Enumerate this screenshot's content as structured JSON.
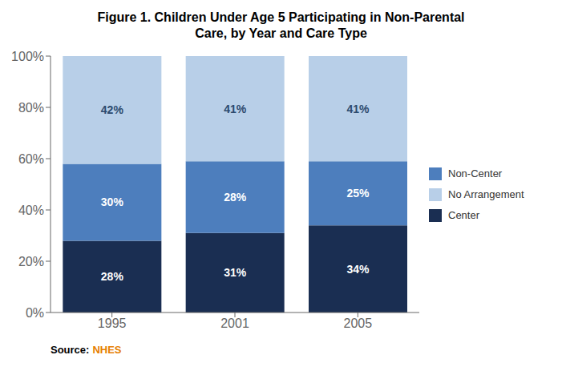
{
  "chart_data": {
    "type": "bar",
    "title": "Figure 1. Children Under Age 5 Participating in Non-Parental\nCare, by Year and Care Type",
    "categories": [
      "1995",
      "2001",
      "2005"
    ],
    "series": [
      {
        "name": "Center",
        "color": "#1a2e52",
        "values": [
          28,
          31,
          34
        ],
        "value_labels": [
          "28%",
          "31%",
          "34%"
        ]
      },
      {
        "name": "Non-Center",
        "color": "#4d7ebd",
        "values": [
          30,
          28,
          25
        ],
        "value_labels": [
          "30%",
          "28%",
          "25%"
        ]
      },
      {
        "name": "No Arrangement",
        "color": "#b8cfe8",
        "values": [
          42,
          41,
          41
        ],
        "value_labels": [
          "42%",
          "41%",
          "41%"
        ]
      }
    ],
    "stacked": true,
    "data_labels": true,
    "ylim": [
      0,
      100
    ],
    "yticks": [
      {
        "value": 0,
        "label": "0%"
      },
      {
        "value": 20,
        "label": "20%"
      },
      {
        "value": 40,
        "label": "40%"
      },
      {
        "value": 60,
        "label": "60%"
      },
      {
        "value": 80,
        "label": "80%"
      },
      {
        "value": 100,
        "label": "100%"
      }
    ],
    "grid": false,
    "legend": "right",
    "annotations": [
      {
        "text": "Source:",
        "color": "#000000"
      },
      {
        "text": "NHES",
        "color": "#e67e00"
      }
    ]
  }
}
